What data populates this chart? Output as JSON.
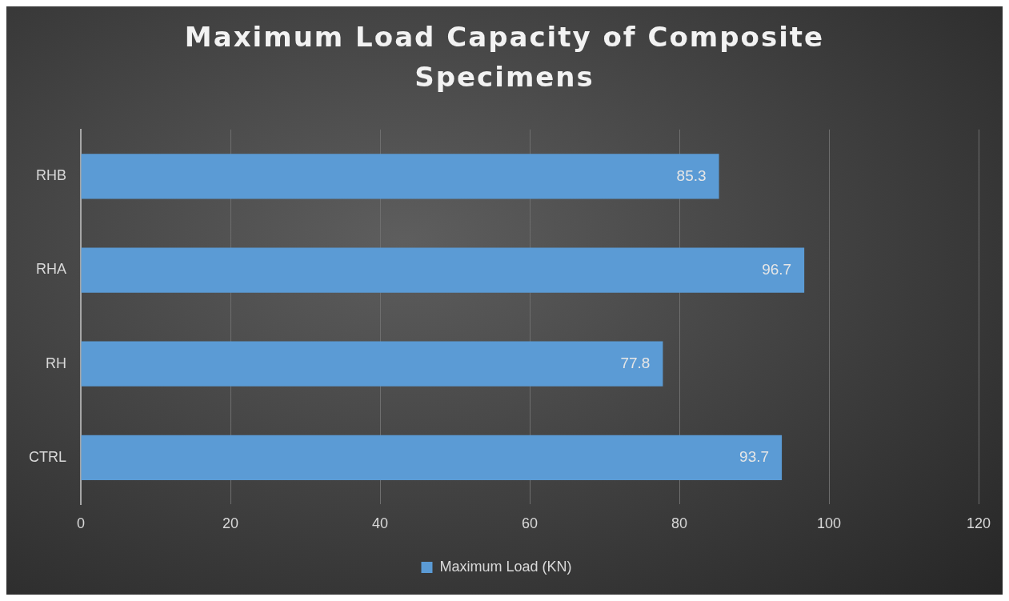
{
  "chart_data": {
    "type": "bar",
    "orientation": "horizontal",
    "title": "Maximum Load Capacity of Composite Specimens",
    "categories": [
      "RHB",
      "RHA",
      "RH",
      "CTRL"
    ],
    "series": [
      {
        "name": "Maximum Load (KN)",
        "color": "#5b9bd5",
        "values": [
          85.3,
          96.7,
          77.8,
          93.7
        ]
      }
    ],
    "xlim": [
      0,
      120
    ],
    "xticks": [
      0,
      20,
      40,
      60,
      80,
      100,
      120
    ],
    "grid": "x",
    "legend": "bottom",
    "data_labels": true
  }
}
